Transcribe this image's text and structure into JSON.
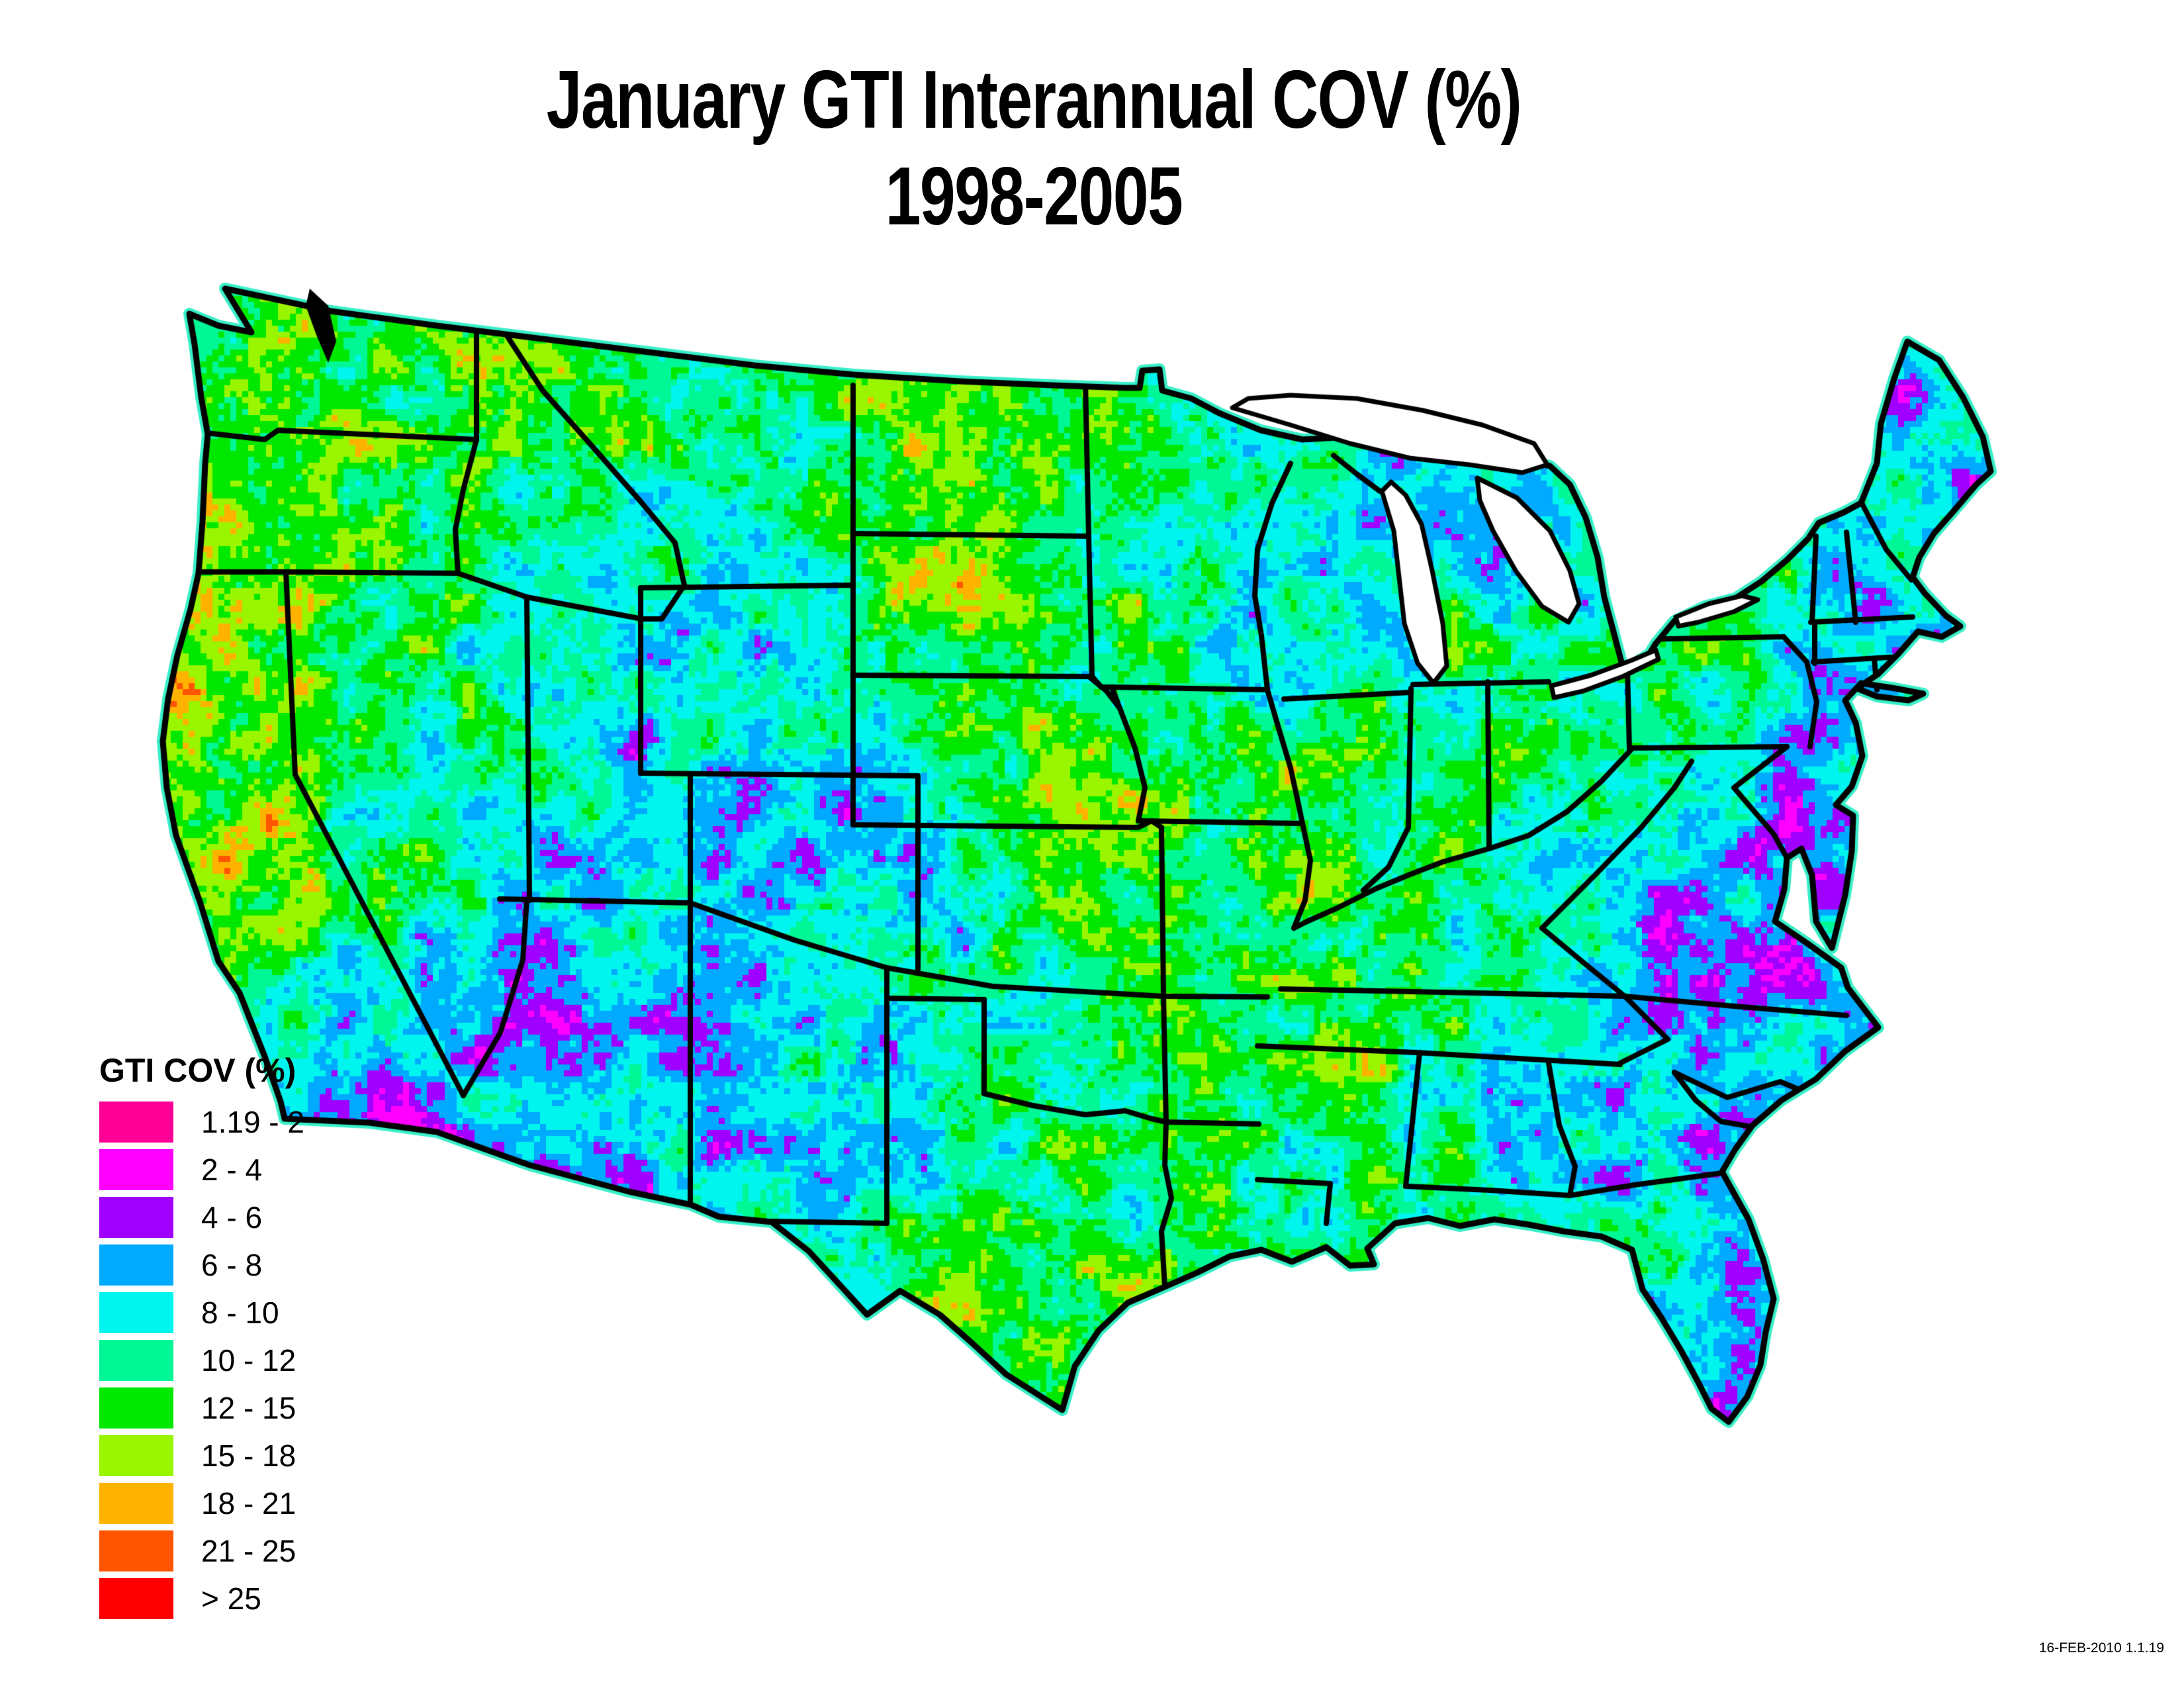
{
  "title": {
    "line1": "January GTI Interannual COV (%)",
    "line2": "1998-2005"
  },
  "legend": {
    "title": "GTI COV (%)",
    "classes": [
      {
        "label": "1.19 - 2",
        "color": "#FF0096"
      },
      {
        "label": "2 - 4",
        "color": "#FF00FF"
      },
      {
        "label": "4 - 6",
        "color": "#A000FF"
      },
      {
        "label": "6 - 8",
        "color": "#00AAFF"
      },
      {
        "label": "8 - 10",
        "color": "#00F5EE"
      },
      {
        "label": "10 - 12",
        "color": "#00F795"
      },
      {
        "label": "12 - 15",
        "color": "#00E800"
      },
      {
        "label": "15 - 18",
        "color": "#99F500"
      },
      {
        "label": "18 - 21",
        "color": "#FFB300"
      },
      {
        "label": "21 - 25",
        "color": "#FF5500"
      },
      {
        "label": "> 25",
        "color": "#FF0000"
      }
    ]
  },
  "footer": {
    "timestamp": "16-FEB-2010 1.1.19"
  },
  "map": {
    "background": "#FFFFFF",
    "border_color": "#000000",
    "halo_color": "#38EFC8",
    "cell_size": 9,
    "value_meaning": "class index 0-10 into legend.classes (0 = 1.19-2 % ... 10 = >25 %)",
    "regional_pattern": [
      [
        340,
        560,
        6.2
      ],
      [
        480,
        520,
        5.5
      ],
      [
        560,
        620,
        6.5
      ],
      [
        430,
        620,
        6.8
      ],
      [
        360,
        760,
        7.2
      ],
      [
        500,
        800,
        6.0
      ],
      [
        620,
        820,
        5.5
      ],
      [
        330,
        880,
        8.2
      ],
      [
        430,
        980,
        7.0
      ],
      [
        560,
        950,
        6.0
      ],
      [
        300,
        1080,
        7.8
      ],
      [
        290,
        1200,
        6.2
      ],
      [
        380,
        1150,
        7.4
      ],
      [
        400,
        1250,
        8.4
      ],
      [
        420,
        1300,
        7.8
      ],
      [
        350,
        1420,
        6.6
      ],
      [
        450,
        1570,
        4.0
      ],
      [
        520,
        1650,
        2.0
      ],
      [
        600,
        1700,
        1.6
      ],
      [
        560,
        1520,
        3.6
      ],
      [
        520,
        1000,
        5.6
      ],
      [
        620,
        1100,
        4.6
      ],
      [
        560,
        1250,
        5.0
      ],
      [
        650,
        1350,
        4.4
      ],
      [
        700,
        1500,
        3.0
      ],
      [
        750,
        1200,
        4.2
      ],
      [
        700,
        560,
        6.6
      ],
      [
        660,
        680,
        6.2
      ],
      [
        800,
        760,
        5.2
      ],
      [
        880,
        860,
        4.6
      ],
      [
        820,
        660,
        7.4
      ],
      [
        850,
        1000,
        3.6
      ],
      [
        950,
        1150,
        3.2
      ],
      [
        900,
        1280,
        3.8
      ],
      [
        1000,
        1320,
        3.0
      ],
      [
        800,
        1450,
        2.6
      ],
      [
        850,
        1600,
        1.8
      ],
      [
        950,
        1700,
        2.0
      ],
      [
        1000,
        1500,
        3.0
      ],
      [
        900,
        1750,
        2.4
      ],
      [
        1060,
        640,
        5.0
      ],
      [
        1160,
        720,
        4.4
      ],
      [
        1270,
        650,
        5.4
      ],
      [
        1400,
        700,
        6.0
      ],
      [
        1500,
        620,
        7.6
      ],
      [
        1180,
        560,
        6.4
      ],
      [
        1080,
        800,
        4.8
      ],
      [
        1240,
        820,
        4.6
      ],
      [
        1020,
        950,
        4.6
      ],
      [
        1120,
        1000,
        3.6
      ],
      [
        1220,
        1060,
        4.0
      ],
      [
        1150,
        1120,
        3.4
      ],
      [
        1060,
        1080,
        4.2
      ],
      [
        1120,
        1240,
        2.8
      ],
      [
        1220,
        1300,
        2.0
      ],
      [
        1300,
        1260,
        2.4
      ],
      [
        1180,
        1330,
        2.6
      ],
      [
        1330,
        1400,
        3.2
      ],
      [
        1100,
        1180,
        3.4
      ],
      [
        1120,
        1500,
        3.6
      ],
      [
        1220,
        1600,
        3.0
      ],
      [
        1300,
        1700,
        3.4
      ],
      [
        1150,
        1700,
        3.2
      ],
      [
        1280,
        1480,
        3.8
      ],
      [
        1350,
        620,
        7.4
      ],
      [
        1480,
        660,
        7.8
      ],
      [
        1600,
        640,
        7.0
      ],
      [
        1420,
        740,
        6.6
      ],
      [
        1600,
        740,
        6.4
      ],
      [
        1350,
        900,
        7.2
      ],
      [
        1480,
        930,
        8.2
      ],
      [
        1560,
        950,
        7.4
      ],
      [
        1400,
        980,
        6.8
      ],
      [
        1320,
        1100,
        3.4
      ],
      [
        1420,
        1150,
        4.4
      ],
      [
        1550,
        1180,
        5.6
      ],
      [
        1650,
        1160,
        6.8
      ],
      [
        1700,
        1200,
        7.2
      ],
      [
        1450,
        1300,
        3.2
      ],
      [
        1550,
        1380,
        4.4
      ],
      [
        1650,
        1320,
        5.2
      ],
      [
        1720,
        1420,
        6.2
      ],
      [
        1450,
        1550,
        4.8
      ],
      [
        1570,
        1560,
        5.6
      ],
      [
        1680,
        1600,
        6.2
      ],
      [
        1550,
        1480,
        4.4
      ],
      [
        1400,
        1650,
        2.8
      ],
      [
        1450,
        1780,
        3.8
      ],
      [
        1420,
        1880,
        5.2
      ],
      [
        1500,
        1950,
        6.8
      ],
      [
        1560,
        2050,
        7.4
      ],
      [
        1600,
        1800,
        5.4
      ],
      [
        1680,
        1850,
        6.0
      ],
      [
        1700,
        1920,
        6.4
      ],
      [
        1620,
        1700,
        5.0
      ],
      [
        1500,
        1700,
        4.2
      ],
      [
        1850,
        1850,
        4.8
      ],
      [
        1950,
        1820,
        5.0
      ],
      [
        1800,
        1780,
        5.4
      ],
      [
        1900,
        1880,
        4.6
      ],
      [
        1820,
        1560,
        6.0
      ],
      [
        1880,
        1640,
        6.2
      ],
      [
        1800,
        1700,
        5.8
      ],
      [
        1850,
        1300,
        5.8
      ],
      [
        1950,
        1350,
        5.4
      ],
      [
        2050,
        1400,
        5.6
      ],
      [
        1900,
        1450,
        6.0
      ],
      [
        1800,
        1380,
        6.2
      ],
      [
        1750,
        1100,
        7.4
      ],
      [
        1850,
        1150,
        7.0
      ],
      [
        1920,
        1180,
        6.4
      ],
      [
        1800,
        1200,
        6.8
      ],
      [
        1700,
        700,
        6.6
      ],
      [
        1800,
        760,
        4.2
      ],
      [
        1880,
        850,
        3.0
      ],
      [
        1920,
        950,
        2.6
      ],
      [
        1780,
        950,
        4.8
      ],
      [
        1700,
        900,
        6.0
      ],
      [
        1920,
        760,
        3.6
      ],
      [
        1960,
        1000,
        2.8
      ],
      [
        2020,
        940,
        3.2
      ],
      [
        2080,
        1000,
        4.4
      ],
      [
        1990,
        1060,
        5.2
      ],
      [
        2060,
        880,
        3.8
      ],
      [
        2150,
        720,
        4.2
      ],
      [
        2260,
        740,
        3.8
      ],
      [
        2250,
        900,
        3.4
      ],
      [
        2300,
        980,
        5.4
      ],
      [
        2220,
        1000,
        6.2
      ],
      [
        2280,
        850,
        3.0
      ],
      [
        2000,
        1150,
        6.4
      ],
      [
        2050,
        1250,
        6.0
      ],
      [
        2080,
        1350,
        5.8
      ],
      [
        1990,
        1320,
        6.2
      ],
      [
        2170,
        1150,
        5.8
      ],
      [
        2200,
        1250,
        5.4
      ],
      [
        2180,
        1330,
        5.6
      ],
      [
        2300,
        1120,
        4.8
      ],
      [
        2380,
        1180,
        4.6
      ],
      [
        2420,
        1250,
        4.4
      ],
      [
        2300,
        1220,
        5.2
      ],
      [
        2150,
        1430,
        5.4
      ],
      [
        2280,
        1440,
        4.8
      ],
      [
        2380,
        1460,
        4.2
      ],
      [
        2000,
        1540,
        6.2
      ],
      [
        2150,
        1550,
        5.6
      ],
      [
        2300,
        1560,
        4.6
      ],
      [
        2420,
        1560,
        3.8
      ],
      [
        2040,
        1700,
        6.4
      ],
      [
        2080,
        1620,
        6.8
      ],
      [
        2060,
        1780,
        5.6
      ],
      [
        2200,
        1680,
        5.0
      ],
      [
        2280,
        1720,
        4.6
      ],
      [
        2180,
        1760,
        4.8
      ],
      [
        2300,
        1650,
        4.4
      ],
      [
        2400,
        1700,
        3.4
      ],
      [
        2480,
        1740,
        2.8
      ],
      [
        2420,
        1800,
        3.8
      ],
      [
        2520,
        1680,
        3.0
      ],
      [
        2350,
        1750,
        4.2
      ],
      [
        2450,
        1830,
        4.4
      ],
      [
        2300,
        1820,
        4.6
      ],
      [
        2560,
        1860,
        4.0
      ],
      [
        2620,
        1940,
        3.4
      ],
      [
        2640,
        2040,
        2.8
      ],
      [
        2620,
        2120,
        2.0
      ],
      [
        2610,
        2145,
        1.4
      ],
      [
        2580,
        1680,
        3.2
      ],
      [
        2650,
        1700,
        3.6
      ],
      [
        2620,
        1640,
        2.8
      ],
      [
        2520,
        1560,
        2.2
      ],
      [
        2620,
        1570,
        2.6
      ],
      [
        2720,
        1580,
        3.2
      ],
      [
        2780,
        1555,
        3.6
      ],
      [
        2550,
        1460,
        1.6
      ],
      [
        2650,
        1480,
        1.8
      ],
      [
        2700,
        1440,
        2.2
      ],
      [
        2480,
        1430,
        2.6
      ],
      [
        2420,
        1330,
        2.8
      ],
      [
        2480,
        1380,
        2.4
      ],
      [
        2520,
        1300,
        3.0
      ],
      [
        2700,
        1250,
        1.8
      ],
      [
        2740,
        1300,
        1.6
      ],
      [
        2760,
        1180,
        2.2
      ],
      [
        2780,
        1120,
        2.6
      ],
      [
        2520,
        1050,
        4.6
      ],
      [
        2600,
        1080,
        3.8
      ],
      [
        2680,
        1070,
        3.4
      ],
      [
        2560,
        1120,
        4.2
      ],
      [
        2490,
        1060,
        7.4
      ],
      [
        2540,
        950,
        6.2
      ],
      [
        2620,
        960,
        6.0
      ],
      [
        2700,
        980,
        4.8
      ],
      [
        2560,
        1010,
        7.2
      ],
      [
        2660,
        900,
        5.4
      ],
      [
        2740,
        930,
        4.4
      ],
      [
        2760,
        850,
        4.2
      ],
      [
        2800,
        880,
        3.6
      ],
      [
        2840,
        840,
        3.4
      ],
      [
        2820,
        960,
        3.2
      ],
      [
        2870,
        1000,
        2.8
      ],
      [
        2900,
        960,
        3.0
      ],
      [
        2880,
        640,
        2.6
      ],
      [
        2920,
        720,
        3.0
      ],
      [
        2950,
        800,
        3.4
      ],
      [
        2900,
        560,
        2.2
      ],
      [
        2990,
        680,
        3.2
      ],
      [
        2860,
        760,
        4.0
      ]
    ]
  }
}
